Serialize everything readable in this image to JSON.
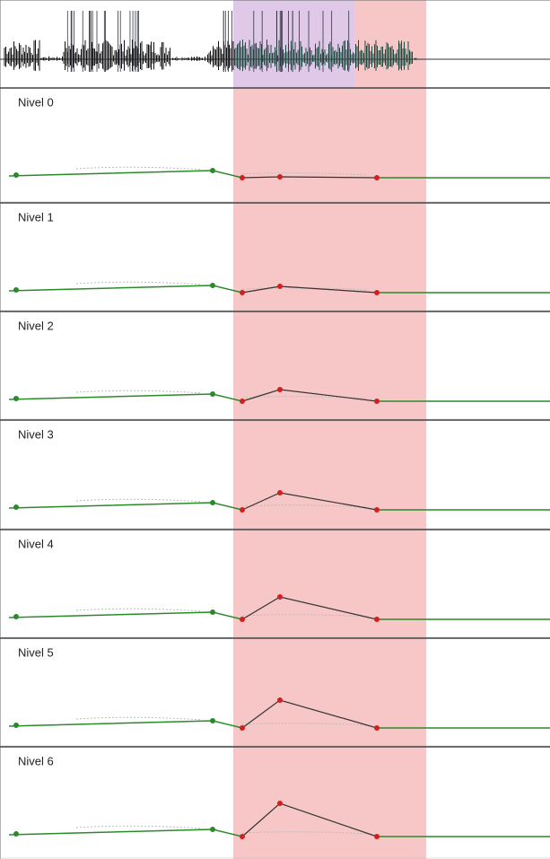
{
  "panels": [
    {
      "label": "Nivel 0"
    },
    {
      "label": "Nivel 1"
    },
    {
      "label": "Nivel 2"
    },
    {
      "label": "Nivel 3"
    },
    {
      "label": "Nivel 4"
    },
    {
      "label": "Nivel 5"
    },
    {
      "label": "Nivel 6"
    }
  ]
}
